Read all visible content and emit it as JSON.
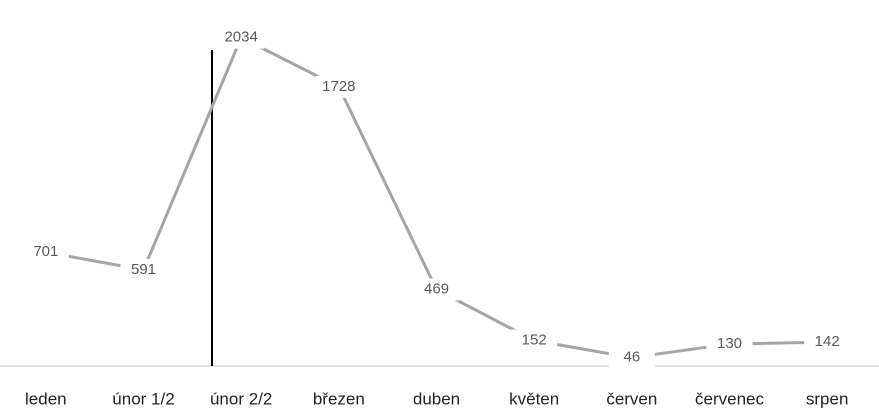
{
  "chart_data": {
    "type": "line",
    "categories": [
      "leden",
      "únor 1/2",
      "únor 2/2",
      "březen",
      "duben",
      "květen",
      "červen",
      "červenec",
      "srpen"
    ],
    "series": [
      {
        "color": "#a5a5a5",
        "values": [
          701,
          591,
          2034,
          1728,
          469,
          152,
          46,
          130,
          142
        ]
      }
    ],
    "ylim": [
      0,
      2100
    ]
  }
}
